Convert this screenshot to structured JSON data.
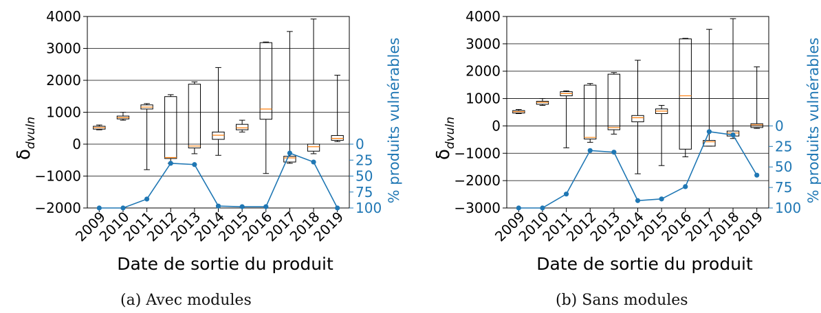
{
  "captions": [
    "(a) Avec modules",
    "(b) Sans modules"
  ],
  "colors": {
    "box": "#000000",
    "median": "#ff7f0e",
    "line": "#1f77b4",
    "grid": "#000000"
  },
  "chart_data": [
    {
      "type": "box",
      "caption": "(a) Avec modules",
      "xlabel": "Date de sortie du produit",
      "ylabel": "δ_dvuln",
      "ylabel_main": "δ",
      "ylabel_sub": "dvuln",
      "y2label": "% produits vulnérables",
      "categories": [
        "2009",
        "2010",
        "2011",
        "2012",
        "2013",
        "2014",
        "2015",
        "2016",
        "2017",
        "2018",
        "2019"
      ],
      "ylim": [
        -2000,
        4000
      ],
      "yticks": [
        -2000,
        -1000,
        0,
        1000,
        2000,
        3000,
        4000
      ],
      "grid_y": true,
      "boxes": [
        {
          "whislo": 450,
          "q1": 470,
          "med": 520,
          "q3": 560,
          "whishi": 600
        },
        {
          "whislo": 750,
          "q1": 790,
          "med": 830,
          "q3": 880,
          "whishi": 1000
        },
        {
          "whislo": -800,
          "q1": 1100,
          "med": 1160,
          "q3": 1230,
          "whishi": 1270
        },
        {
          "whislo": -600,
          "q1": -450,
          "med": -420,
          "q3": 1490,
          "whishi": 1550
        },
        {
          "whislo": -300,
          "q1": -120,
          "med": -60,
          "q3": 1880,
          "whishi": 1950
        },
        {
          "whislo": -350,
          "q1": 150,
          "med": 280,
          "q3": 380,
          "whishi": 2400
        },
        {
          "whislo": 380,
          "q1": 450,
          "med": 510,
          "q3": 620,
          "whishi": 750
        },
        {
          "whislo": -920,
          "q1": 780,
          "med": 1100,
          "q3": 3180,
          "whishi": 3200
        },
        {
          "whislo": -600,
          "q1": -560,
          "med": -430,
          "q3": -380,
          "whishi": 3530
        },
        {
          "whislo": -300,
          "q1": -220,
          "med": -80,
          "q3": 0,
          "whishi": 3920
        },
        {
          "whislo": 80,
          "q1": 120,
          "med": 180,
          "q3": 270,
          "whishi": 2160
        }
      ],
      "series2": {
        "name": "% produits vulnérables",
        "ylim": [
          0,
          100
        ],
        "ticks": [
          0,
          25,
          50,
          75,
          100
        ],
        "values": [
          100,
          100,
          86,
          30,
          32,
          97,
          98,
          98,
          14,
          28,
          100
        ]
      }
    },
    {
      "type": "box",
      "caption": "(b) Sans modules",
      "xlabel": "Date de sortie du produit",
      "ylabel": "δ_dvuln",
      "ylabel_main": "δ",
      "ylabel_sub": "dvuln",
      "y2label": "% produits vulnérables",
      "categories": [
        "2009",
        "2010",
        "2011",
        "2012",
        "2013",
        "2014",
        "2015",
        "2016",
        "2017",
        "2018",
        "2019"
      ],
      "ylim": [
        -3000,
        4000
      ],
      "yticks": [
        -3000,
        -2000,
        -1000,
        0,
        1000,
        2000,
        3000,
        4000
      ],
      "grid_y": true,
      "boxes": [
        {
          "whislo": 450,
          "q1": 470,
          "med": 520,
          "q3": 560,
          "whishi": 600
        },
        {
          "whislo": 750,
          "q1": 790,
          "med": 860,
          "q3": 900,
          "whishi": 1000
        },
        {
          "whislo": -800,
          "q1": 1100,
          "med": 1180,
          "q3": 1250,
          "whishi": 1280
        },
        {
          "whislo": -600,
          "q1": -480,
          "med": -420,
          "q3": 1490,
          "whishi": 1550
        },
        {
          "whislo": -300,
          "q1": -140,
          "med": -60,
          "q3": 1890,
          "whishi": 1950
        },
        {
          "whislo": -1750,
          "q1": 150,
          "med": 300,
          "q3": 380,
          "whishi": 2400
        },
        {
          "whislo": -1450,
          "q1": 450,
          "med": 540,
          "q3": 620,
          "whishi": 750
        },
        {
          "whislo": -1130,
          "q1": -850,
          "med": 1100,
          "q3": 3180,
          "whishi": 3200
        },
        {
          "whislo": -740,
          "q1": -740,
          "med": -580,
          "q3": -530,
          "whishi": 3530
        },
        {
          "whislo": -460,
          "q1": -370,
          "med": -260,
          "q3": -190,
          "whishi": 3920
        },
        {
          "whislo": -90,
          "q1": -60,
          "med": 40,
          "q3": 80,
          "whishi": 2160
        }
      ],
      "series2": {
        "name": "% produits vulnérables",
        "ylim": [
          0,
          100
        ],
        "ticks": [
          0,
          25,
          50,
          75,
          100
        ],
        "values": [
          100,
          100,
          83,
          30,
          32,
          91,
          89,
          74,
          7,
          11,
          60
        ]
      }
    }
  ]
}
